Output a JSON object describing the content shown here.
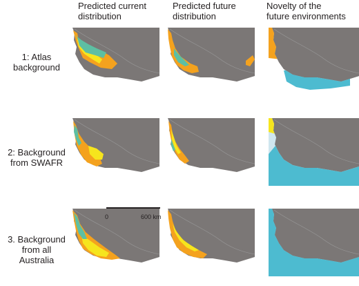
{
  "header": {
    "col1": [
      "Predicted current",
      "distribution"
    ],
    "col2": [
      "Predicted future",
      "distribution"
    ],
    "col3": [
      "Novelty of the",
      "future environments"
    ]
  },
  "rows": [
    {
      "label": [
        "1: Atlas",
        "background"
      ]
    },
    {
      "label": [
        "2: Background",
        "from SWAFR"
      ]
    },
    {
      "label": [
        "3. Background",
        "from all Australia"
      ]
    }
  ],
  "scalebar": {
    "start": "0",
    "end": "600 km"
  },
  "colors": {
    "ocean": "#7b7776",
    "land": "#ffffff",
    "boundary": "#9a9a9a",
    "suitable_orange": "#f4a21e",
    "suitable_yellow": "#f6e51d",
    "core_teal": "#5dbfa3",
    "novel_orange": "#f4a21e",
    "novel_yellow": "#f6e51d",
    "novel_lightblue": "#cfe6ef",
    "novel_blue": "#4dbbd0"
  }
}
